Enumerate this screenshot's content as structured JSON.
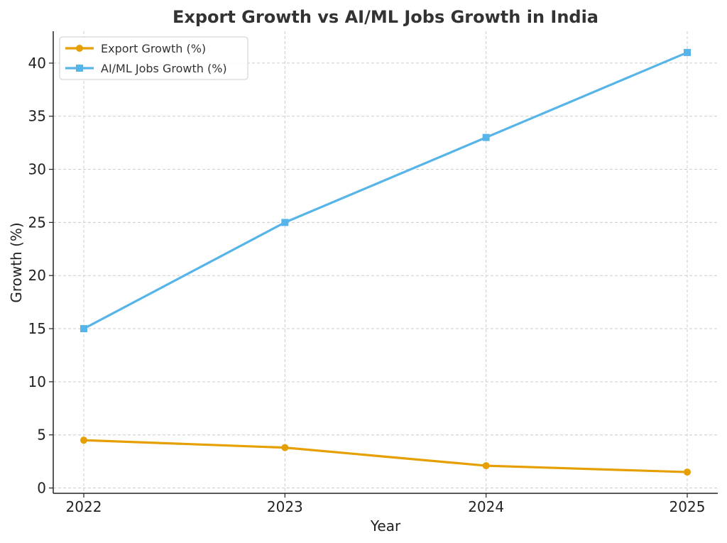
{
  "chart_data": {
    "type": "line",
    "title": "Export Growth vs AI/ML Jobs Growth in India",
    "xlabel": "Year",
    "ylabel": "Growth (%)",
    "categories": [
      "2022",
      "2023",
      "2024",
      "2025"
    ],
    "yticks": [
      0,
      5,
      10,
      15,
      20,
      25,
      30,
      35,
      40
    ],
    "ylim": [
      -0.5,
      43
    ],
    "grid": true,
    "legend_position": "top-left",
    "series": [
      {
        "name": "Export Growth (%)",
        "values": [
          4.5,
          3.8,
          2.1,
          1.5
        ],
        "color": "#E69F00",
        "marker": "circle"
      },
      {
        "name": "AI/ML Jobs Growth (%)",
        "values": [
          15,
          25,
          33,
          41
        ],
        "color": "#56B4E9",
        "marker": "square"
      }
    ]
  }
}
